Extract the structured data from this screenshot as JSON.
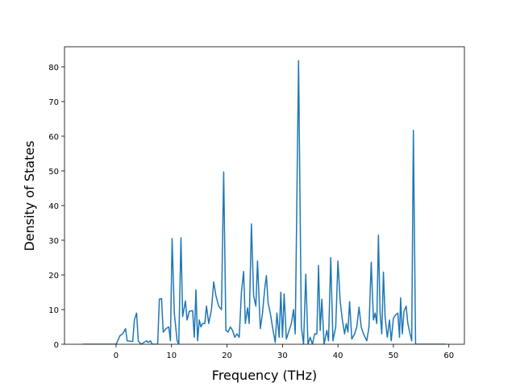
{
  "chart_data": {
    "type": "line",
    "xlabel": "Frequency (THz)",
    "ylabel": "Density of States",
    "color": "#1f77b4",
    "xlim": [
      -9.3,
      62.8
    ],
    "ylim": [
      0,
      85.8
    ],
    "xticks": [
      0,
      10,
      20,
      30,
      40,
      50,
      60
    ],
    "yticks": [
      0,
      10,
      20,
      30,
      40,
      50,
      60,
      70,
      80
    ],
    "x": [
      -6,
      0,
      0.3,
      0.7,
      1.2,
      1.7,
      2,
      3,
      3.3,
      3.7,
      4,
      4.5,
      5,
      5.5,
      5.8,
      6.2,
      6.5,
      7.5,
      7.8,
      8.2,
      8.5,
      9,
      9.5,
      9.8,
      10.1,
      10.5,
      11,
      11.3,
      11.7,
      12,
      12.5,
      12.8,
      13.2,
      13.8,
      14.1,
      14.4,
      14.7,
      15,
      15.3,
      15.6,
      16,
      16.3,
      16.7,
      17.2,
      17.6,
      18,
      18.5,
      19,
      19.4,
      19.8,
      20.2,
      20.6,
      21,
      21.4,
      21.8,
      22.2,
      22.6,
      23,
      23.3,
      23.7,
      24,
      24.4,
      24.8,
      25.2,
      25.5,
      26,
      26.4,
      26.8,
      27.1,
      27.4,
      27.8,
      28.3,
      28.7,
      29,
      29.4,
      29.7,
      30,
      30.3,
      30.7,
      31.2,
      31.6,
      32,
      32.3,
      32.9,
      33.4,
      33.8,
      34.2,
      34.6,
      35,
      35.4,
      35.8,
      36.2,
      36.5,
      36.8,
      37.1,
      37.5,
      38,
      38.3,
      38.7,
      39.1,
      39.6,
      40,
      40.4,
      40.8,
      41.2,
      41.5,
      41.8,
      42.1,
      42.5,
      43,
      43.4,
      43.8,
      44.2,
      44.6,
      45.2,
      45.6,
      46,
      46.4,
      46.7,
      47,
      47.3,
      47.6,
      47.9,
      48.2,
      48.5,
      48.9,
      49.3,
      49.6,
      50,
      50.4,
      50.8,
      51.1,
      51.3,
      51.6,
      51.9,
      52.3,
      52.6,
      53,
      53.3,
      53.6,
      54,
      55,
      59.5
    ],
    "values": [
      0,
      0,
      1,
      2.5,
      3,
      4.5,
      1,
      0.8,
      7,
      9,
      1,
      0,
      0.5,
      1,
      0.5,
      1,
      0,
      0,
      13,
      13.2,
      3.5,
      4.5,
      5,
      1,
      30.5,
      9,
      1,
      0,
      30.7,
      8,
      12.5,
      7,
      9.5,
      9.7,
      2,
      15.7,
      1,
      7,
      5,
      6,
      6,
      11,
      6,
      10,
      18,
      14,
      11,
      10,
      49.7,
      4,
      3.5,
      5,
      4,
      2,
      3,
      2,
      15,
      21,
      6,
      10.5,
      6,
      34.7,
      14,
      11,
      24,
      4.5,
      9,
      16,
      19.8,
      12,
      9,
      4,
      0.5,
      9,
      2,
      15,
      2,
      14.5,
      1.5,
      4,
      6,
      10,
      3,
      81.8,
      5,
      0,
      20.2,
      0,
      2,
      0,
      3,
      3,
      22.7,
      4,
      13,
      0,
      4,
      1,
      25,
      1,
      5,
      24,
      12.5,
      7,
      3,
      6,
      3.5,
      12.3,
      1.5,
      3,
      5,
      10.7,
      5,
      3,
      1,
      5,
      23.7,
      7,
      9,
      6,
      31.5,
      9,
      3,
      20.8,
      8,
      2,
      7,
      1,
      7.5,
      8.5,
      9,
      2,
      13.4,
      3,
      9.5,
      11,
      6,
      3,
      1,
      61.7,
      0,
      0,
      0
    ]
  }
}
